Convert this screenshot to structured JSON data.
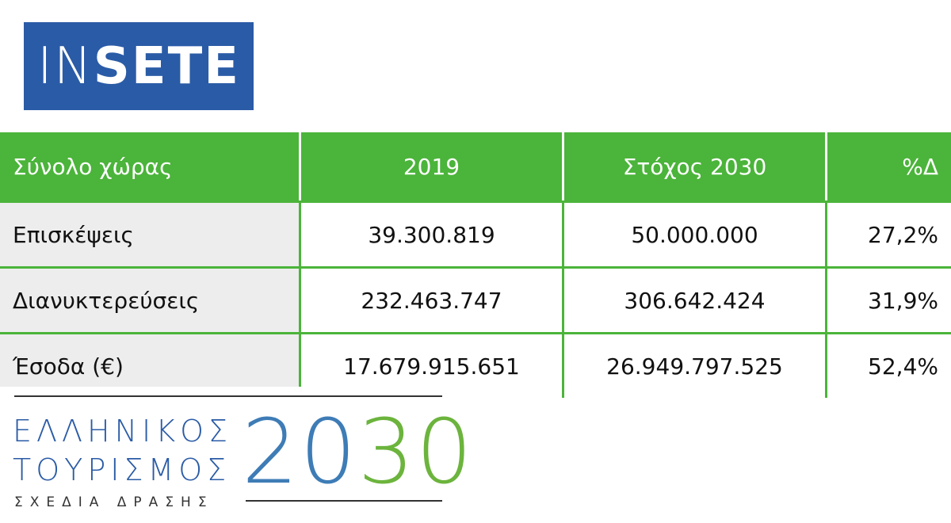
{
  "logo": {
    "part1": "IN",
    "part2": "SETE"
  },
  "table": {
    "headers": [
      "Σύνολο χώρας",
      "2019",
      "Στόχος 2030",
      "%Δ"
    ],
    "rows": [
      [
        "Επισκέψεις",
        "39.300.819",
        "50.000.000",
        "27,2%"
      ],
      [
        "Διανυκτερεύσεις",
        "232.463.747",
        "306.642.424",
        "31,9%"
      ],
      [
        "Έσοδα (€)",
        "17.679.915.651",
        "26.949.797.525",
        "52,4%"
      ]
    ]
  },
  "bottom_logo": {
    "line1": "ΕΛΛΗΝΙΚΟΣ",
    "line2": "ΤΟΥΡΙΣΜΟΣ",
    "subtitle": "ΣΧΕΔΙΑ ΔΡΑΣΗΣ",
    "year_part1": "20",
    "year_part2": "30"
  },
  "colors": {
    "blue": "#2a5ba6",
    "green": "#4bb43a",
    "gray_cell": "#ededed"
  }
}
